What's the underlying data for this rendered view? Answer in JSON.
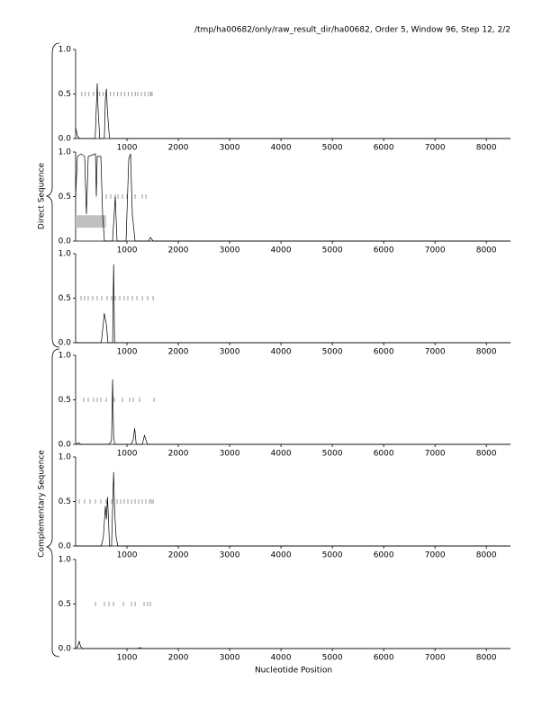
{
  "title": "/tmp/ha00682/only/raw_result_dir/ha00682, Order 5, Window 96, Step 12, 2/2",
  "xlabel": "Nucleotide Position",
  "group_labels": [
    "Direct Sequence",
    "Complementary Sequence"
  ],
  "chart_data": [
    {
      "type": "line",
      "color": "#000000",
      "x": [
        0,
        40,
        80,
        300,
        380,
        400,
        420,
        440,
        470,
        500,
        560,
        580,
        600,
        620,
        660,
        8470
      ],
      "values": [
        0.12,
        0.02,
        0,
        0,
        0,
        0.3,
        0.62,
        0.3,
        0,
        0,
        0,
        0.45,
        0.56,
        0.3,
        0,
        0
      ],
      "markers": {
        "y": 0.5,
        "x": [
          120,
          190,
          260,
          350,
          470,
          540,
          680,
          750,
          820,
          890,
          960,
          1030,
          1100,
          1160,
          1210,
          1280,
          1350,
          1420,
          1460,
          1490
        ]
      },
      "xlim": [
        0,
        8470
      ],
      "xticks": [
        1000,
        2000,
        3000,
        4000,
        5000,
        6000,
        7000,
        8000
      ],
      "ylim": [
        0,
        1
      ],
      "yticks": [
        {
          "value": 0,
          "label": "0.0"
        },
        {
          "value": 0.5,
          "label": "0.5"
        },
        {
          "value": 1,
          "label": "1.0"
        }
      ]
    },
    {
      "type": "line",
      "color": "#000000",
      "x": [
        0,
        35,
        105,
        175,
        210,
        245,
        386,
        404,
        421,
        491,
        526,
        561,
        719,
        772,
        807,
        982,
        1035,
        1070,
        1105,
        1158,
        1421,
        1456,
        1509,
        8470
      ],
      "values": [
        0.5,
        0.95,
        0.98,
        0.95,
        0.3,
        0.95,
        0.98,
        0.5,
        0.95,
        0.95,
        0.3,
        0,
        0,
        0.5,
        0,
        0,
        0.92,
        0.98,
        0.3,
        0,
        0,
        0.04,
        0,
        0
      ],
      "markers": {
        "y": 0.5,
        "x": [
          596,
          684,
          772,
          825,
          912,
          1000,
          1158,
          1298,
          1368
        ]
      },
      "region": {
        "x": [
          0,
          590
        ],
        "y": [
          0.15,
          0.29
        ],
        "color": "#c0c0c0"
      },
      "xlim": [
        0,
        8470
      ],
      "xticks": [
        1000,
        2000,
        3000,
        4000,
        5000,
        6000,
        7000,
        8000
      ],
      "ylim": [
        0,
        1
      ],
      "yticks": [
        {
          "value": 0,
          "label": "0.0"
        },
        {
          "value": 0.5,
          "label": "0.5"
        },
        {
          "value": 1,
          "label": "1.0"
        }
      ]
    },
    {
      "type": "line",
      "color": "#000000",
      "x": [
        0,
        500,
        560,
        600,
        630,
        660,
        720,
        740,
        760,
        800,
        8470
      ],
      "values": [
        0,
        0,
        0.33,
        0.2,
        0,
        0,
        0,
        0.88,
        0,
        0,
        0
      ],
      "markers": {
        "y": 0.5,
        "x": [
          105,
          175,
          245,
          333,
          421,
          508,
          614,
          702,
          772,
          860,
          947,
          1017,
          1105,
          1193,
          1298,
          1403,
          1509
        ]
      },
      "xlim": [
        0,
        8470
      ],
      "xticks": [
        1000,
        2000,
        3000,
        4000,
        5000,
        6000,
        7000,
        8000
      ],
      "ylim": [
        0,
        1
      ],
      "yticks": [
        {
          "value": 0,
          "label": "0.0"
        },
        {
          "value": 0.5,
          "label": "0.5"
        },
        {
          "value": 1,
          "label": "1.0"
        }
      ]
    },
    {
      "type": "line",
      "color": "#000000",
      "x": [
        0,
        60,
        100,
        640,
        680,
        700,
        720,
        740,
        760,
        1080,
        1120,
        1150,
        1180,
        1300,
        1340,
        1370,
        1400,
        8470
      ],
      "values": [
        0,
        0.02,
        0,
        0,
        0.02,
        0.05,
        0.73,
        0.1,
        0,
        0,
        0.05,
        0.18,
        0,
        0,
        0.1,
        0.05,
        0,
        0
      ],
      "markers": {
        "y": 0.5,
        "x": [
          158,
          245,
          351,
          421,
          491,
          596,
          754,
          912,
          1053,
          1123,
          1245,
          1526
        ]
      },
      "xlim": [
        0,
        8470
      ],
      "xticks": [
        1000,
        2000,
        3000,
        4000,
        5000,
        6000,
        7000,
        8000
      ],
      "ylim": [
        0,
        1
      ],
      "yticks": [
        {
          "value": 0,
          "label": "0.0"
        },
        {
          "value": 0.5,
          "label": "0.5"
        },
        {
          "value": 1,
          "label": "1.0"
        }
      ]
    },
    {
      "type": "line",
      "color": "#000000",
      "x": [
        0,
        500,
        540,
        580,
        600,
        620,
        640,
        660,
        700,
        740,
        760,
        790,
        820,
        860,
        8470
      ],
      "values": [
        0,
        0,
        0.1,
        0.45,
        0.3,
        0.55,
        0.3,
        0,
        0,
        0.83,
        0.4,
        0.1,
        0,
        0,
        0
      ],
      "markers": {
        "y": 0.5,
        "x": [
          70,
          175,
          280,
          386,
          491,
          596,
          702,
          807,
          877,
          947,
          1017,
          1088,
          1158,
          1228,
          1298,
          1368,
          1438,
          1474,
          1509
        ]
      },
      "xlim": [
        0,
        8470
      ],
      "xticks": [
        1000,
        2000,
        3000,
        4000,
        5000,
        6000,
        7000,
        8000
      ],
      "ylim": [
        0,
        1
      ],
      "yticks": [
        {
          "value": 0,
          "label": "0.0"
        },
        {
          "value": 0.5,
          "label": "0.5"
        },
        {
          "value": 1,
          "label": "1.0"
        }
      ]
    },
    {
      "type": "line",
      "color": "#000000",
      "x": [
        0,
        40,
        70,
        100,
        140,
        1200,
        1250,
        1300,
        8470
      ],
      "values": [
        0,
        0.02,
        0.08,
        0.02,
        0,
        0,
        0.01,
        0,
        0
      ],
      "markers": {
        "y": 0.5,
        "x": [
          386,
          561,
          649,
          737,
          930,
          1088,
          1158,
          1333,
          1403,
          1456
        ]
      },
      "xlim": [
        0,
        8470
      ],
      "xticks": [
        1000,
        2000,
        3000,
        4000,
        5000,
        6000,
        7000,
        8000
      ],
      "ylim": [
        0,
        1
      ],
      "yticks": [
        {
          "value": 0,
          "label": "0.0"
        },
        {
          "value": 0.5,
          "label": "0.5"
        },
        {
          "value": 1,
          "label": "1.0"
        }
      ]
    }
  ]
}
